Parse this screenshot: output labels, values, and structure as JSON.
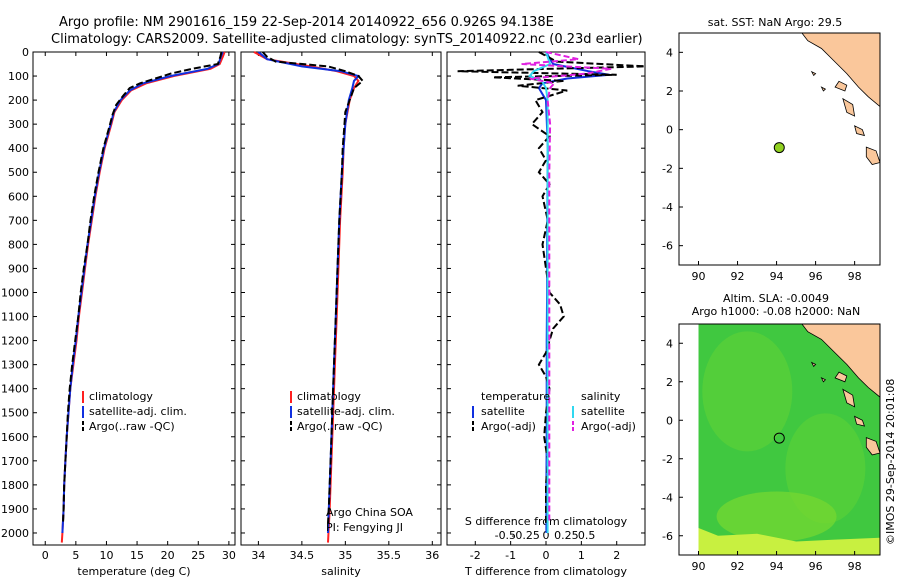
{
  "header": {
    "line1": "Argo profile: NM 2901616_159 22-Sep-2014 20140922_656 0.926S 94.138E",
    "line2": "Climatology: CARS2009. Satellite-adjusted climatology: synTS_20140922.nc (0.23d earlier)"
  },
  "colors": {
    "climatology": "#ff2020",
    "satellite": "#1030e0",
    "argo": "#000000",
    "satellite_s": "#30d8f0",
    "argo_s": "#e020e0",
    "land": "#fac79b",
    "float": "#90d020"
  },
  "chart_data": [
    {
      "id": "temperature",
      "type": "line",
      "xlabel": "temperature (deg C)",
      "ylabel": "",
      "xlim": [
        -2,
        31
      ],
      "ylim": [
        2050,
        0
      ],
      "xticks": [
        0,
        5,
        10,
        15,
        20,
        25,
        30
      ],
      "yticks": [
        0,
        100,
        200,
        300,
        400,
        500,
        600,
        700,
        800,
        900,
        1000,
        1100,
        1200,
        1300,
        1400,
        1500,
        1600,
        1700,
        1800,
        1900,
        2000
      ],
      "legend": [
        "climatology",
        "satellite-adj. clim.",
        "Argo(..raw -QC)"
      ],
      "legend_placement": "bottom-right",
      "series": [
        {
          "name": "climatology",
          "color": "red",
          "depth": [
            0,
            20,
            50,
            70,
            100,
            130,
            160,
            200,
            250,
            300,
            400,
            500,
            600,
            700,
            800,
            900,
            1000,
            1100,
            1200,
            1300,
            1400,
            1500,
            1600,
            1700,
            1800,
            1900,
            2000,
            2040
          ],
          "values": [
            29.3,
            29.0,
            28.5,
            27.0,
            21.0,
            16.5,
            14.0,
            12.5,
            11.3,
            10.8,
            9.7,
            8.9,
            8.2,
            7.6,
            7.0,
            6.5,
            6.0,
            5.5,
            5.1,
            4.6,
            4.1,
            3.8,
            3.5,
            3.3,
            3.1,
            3.0,
            2.8,
            2.7
          ]
        },
        {
          "name": "satellite-adj. clim.",
          "color": "blue",
          "depth": [
            0,
            20,
            50,
            70,
            100,
            130,
            160,
            200,
            250,
            300,
            400,
            500,
            600,
            700,
            800,
            900,
            1000,
            1100,
            1200,
            1300,
            1400,
            1500,
            1600,
            1700,
            1800,
            1900,
            2000
          ],
          "values": [
            29.0,
            28.7,
            28.3,
            26.5,
            20.5,
            16.0,
            13.8,
            12.3,
            11.2,
            10.7,
            9.6,
            8.8,
            8.1,
            7.5,
            6.9,
            6.4,
            5.9,
            5.4,
            5.0,
            4.5,
            4.1,
            3.8,
            3.5,
            3.3,
            3.1,
            3.0,
            2.8
          ]
        },
        {
          "name": "Argo(..raw -QC)",
          "color": "black",
          "depth": [
            0,
            20,
            50,
            70,
            90,
            110,
            130,
            150,
            180,
            220,
            260,
            300,
            400,
            500,
            600,
            700,
            800,
            900,
            1000,
            1100,
            1200,
            1300,
            1400,
            1500,
            1600,
            1700,
            1800,
            1900,
            1960
          ],
          "values": [
            28.8,
            28.6,
            28.2,
            24.0,
            20.5,
            18.0,
            15.5,
            13.8,
            12.8,
            11.6,
            11.0,
            10.6,
            9.5,
            8.7,
            8.0,
            7.4,
            6.9,
            6.3,
            5.8,
            5.4,
            4.9,
            4.4,
            4.0,
            3.7,
            3.5,
            3.3,
            3.1,
            3.0,
            2.9
          ]
        }
      ]
    },
    {
      "id": "salinity",
      "type": "line",
      "xlabel": "salinity",
      "xlim": [
        33.8,
        36.1
      ],
      "ylim": [
        2050,
        0
      ],
      "xticks": [
        34,
        34.5,
        35,
        35.5,
        36
      ],
      "legend": [
        "climatology",
        "satellite-adj. clim.",
        "Argo(..raw -QC)"
      ],
      "legend_placement": "bottom-right",
      "annotation": [
        "Argo China SOA",
        "PI: Fengying JI"
      ],
      "series": [
        {
          "name": "climatology",
          "color": "red",
          "depth": [
            0,
            30,
            60,
            80,
            100,
            120,
            150,
            200,
            300,
            400,
            500,
            700,
            900,
            1100,
            1300,
            1500,
            1700,
            1900,
            2040
          ],
          "values": [
            33.95,
            34.1,
            34.6,
            34.9,
            35.1,
            35.15,
            35.1,
            35.05,
            35.0,
            34.98,
            34.97,
            34.94,
            34.92,
            34.9,
            34.88,
            34.86,
            34.84,
            34.82,
            34.8
          ]
        },
        {
          "name": "satellite-adj. clim.",
          "color": "blue",
          "depth": [
            0,
            30,
            60,
            80,
            100,
            120,
            150,
            200,
            300,
            400,
            500,
            700,
            900,
            1100,
            1300,
            1500,
            1700,
            1900,
            2000
          ],
          "values": [
            34.0,
            34.1,
            34.5,
            34.95,
            35.15,
            35.1,
            35.08,
            35.04,
            35.0,
            34.98,
            34.96,
            34.93,
            34.91,
            34.89,
            34.87,
            34.85,
            34.83,
            34.81,
            34.8
          ]
        },
        {
          "name": "Argo(..raw -QC)",
          "color": "black",
          "depth": [
            0,
            20,
            40,
            60,
            80,
            100,
            120,
            150,
            200,
            250,
            300,
            400,
            500,
            700,
            900,
            1100,
            1300,
            1500,
            1700,
            1900,
            1960
          ],
          "values": [
            34.05,
            34.1,
            34.2,
            34.8,
            35.0,
            35.15,
            35.2,
            35.1,
            35.05,
            35.0,
            34.99,
            34.97,
            34.96,
            34.93,
            34.91,
            34.89,
            34.87,
            34.85,
            34.83,
            34.81,
            34.8
          ]
        }
      ]
    },
    {
      "id": "difference",
      "type": "line",
      "xlabel": "T difference from climatology",
      "xlabel_top": "S difference from climatology",
      "xlim": [
        -2.8,
        2.8
      ],
      "ylim": [
        2050,
        0
      ],
      "xticks_T": [
        -2,
        -1,
        0,
        1,
        2
      ],
      "xticks_S": [
        "-0.5",
        "-0.25",
        "0",
        "0.25",
        "0.5"
      ],
      "legend_temperature": [
        "temperature",
        "satellite",
        "Argo(-adj)"
      ],
      "legend_salinity": [
        "salinity",
        "satellite",
        "Argo(-adj)"
      ],
      "legend_placement": "bottom",
      "series": [
        {
          "name": "satellite (T)",
          "color": "blue",
          "depth": [
            0,
            50,
            80,
            95,
            110,
            130,
            150,
            200,
            400,
            600,
            800,
            1000,
            1200,
            1400,
            1600,
            1800,
            2000
          ],
          "values": [
            0.0,
            0.2,
            1.2,
            1.8,
            0.6,
            -0.1,
            -0.2,
            0.0,
            0.05,
            0.04,
            0.03,
            0.03,
            0.02,
            0.02,
            0.02,
            0.01,
            0.01
          ]
        },
        {
          "name": "Argo(-adj) (T)",
          "color": "black",
          "depth": [
            0,
            40,
            60,
            80,
            95,
            105,
            120,
            140,
            160,
            200,
            250,
            300,
            350,
            400,
            450,
            500,
            550,
            600,
            700,
            800,
            900,
            1000,
            1050,
            1100,
            1150,
            1200,
            1250,
            1300,
            1350,
            1400,
            1500,
            1600,
            1700,
            1800,
            1900,
            1960
          ],
          "values": [
            -0.2,
            0.3,
            2.8,
            -2.5,
            2.0,
            -1.5,
            0.5,
            -0.8,
            0.6,
            -0.3,
            -0.1,
            -0.4,
            0.1,
            -0.2,
            0.0,
            -0.2,
            0.1,
            -0.1,
            0.05,
            -0.1,
            0.0,
            0.1,
            0.4,
            0.5,
            0.2,
            0.1,
            0.0,
            -0.2,
            0.0,
            0.1,
            0.0,
            -0.05,
            0.05,
            0.0,
            0.0,
            0.0
          ]
        },
        {
          "name": "satellite (S)",
          "color": "cyan",
          "depth": [
            0,
            50,
            80,
            100,
            120,
            150,
            200,
            400,
            600,
            800,
            1000,
            1200,
            1400,
            1600,
            1800,
            2000
          ],
          "values": [
            0.0,
            0.05,
            -0.15,
            -0.2,
            -0.05,
            0.0,
            0.02,
            0.02,
            0.02,
            0.02,
            0.02,
            0.02,
            0.02,
            0.02,
            0.02,
            0.02
          ]
        },
        {
          "name": "Argo(-adj) (S)",
          "color": "magenta",
          "depth": [
            0,
            30,
            50,
            70,
            90,
            110,
            130,
            150,
            200,
            300,
            500,
            800,
            1100,
            1400,
            1700,
            1960
          ],
          "values": [
            0.0,
            0.4,
            -0.3,
            0.8,
            0.5,
            -0.2,
            0.1,
            0.05,
            0.02,
            0.05,
            0.04,
            0.04,
            0.04,
            0.04,
            0.04,
            0.04
          ]
        }
      ]
    }
  ],
  "map_top": {
    "title": "sat. SST: NaN Argo: 29.5",
    "xticks": [
      "90",
      "92",
      "94",
      "96",
      "98"
    ],
    "yticks": [
      "4",
      "2",
      "0",
      "-2",
      "-4",
      "-6"
    ],
    "xlim": [
      89,
      99.3
    ],
    "ylim": [
      -7,
      5
    ],
    "float_lon": 94.138,
    "float_lat": -0.926
  },
  "map_bottom": {
    "title1": "Altim. SLA: -0.0049",
    "title2": "Argo h1000: -0.08 h2000: NaN",
    "xticks": [
      "90",
      "92",
      "94",
      "96",
      "98"
    ],
    "yticks": [
      "4",
      "2",
      "0",
      "-2",
      "-4",
      "-6"
    ],
    "xlim": [
      89,
      99.3
    ],
    "ylim": [
      -7,
      5
    ],
    "float_lon": 94.138,
    "float_lat": -0.926,
    "field_colors": [
      "#40c840",
      "#58d038",
      "#78d830",
      "#c8f040"
    ]
  },
  "footer": {
    "stamp": "©IMOS 29-Sep-2014 20:01:08"
  }
}
